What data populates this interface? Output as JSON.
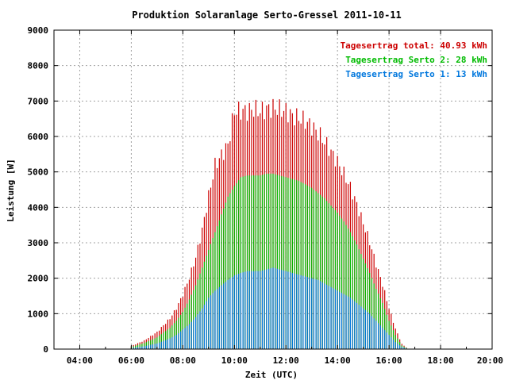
{
  "chart_data": {
    "type": "bar",
    "title": "Produktion Solaranlage Serto-Gressel 2011-10-11",
    "xlabel": "Zeit (UTC)",
    "ylabel": "Leistung [W]",
    "xlim": [
      3.0,
      20.0
    ],
    "ylim": [
      0,
      9000
    ],
    "x_ticks": [
      4,
      6,
      8,
      10,
      12,
      14,
      16,
      18,
      20
    ],
    "x_tick_labels": [
      "04:00",
      "06:00",
      "08:00",
      "10:00",
      "12:00",
      "14:00",
      "16:00",
      "18:00",
      "20:00"
    ],
    "y_ticks": [
      0,
      1000,
      2000,
      3000,
      4000,
      5000,
      6000,
      7000,
      8000,
      9000
    ],
    "y_tick_labels": [
      "0",
      "1000",
      "2000",
      "3000",
      "4000",
      "5000",
      "6000",
      "7000",
      "8000",
      "9000"
    ],
    "grid": true,
    "legend_position": "top-right",
    "legend": [
      {
        "label": "Tagesertrag total: 40.93 kWh",
        "color": "#cc0000"
      },
      {
        "label": "Tagesertrag Serto 2: 28 kWh",
        "color": "#00bb00"
      },
      {
        "label": "Tagesertrag Serto 1: 13 kWh",
        "color": "#0077dd"
      }
    ],
    "series": [
      {
        "name": "Serto 1",
        "color": "#0077dd",
        "x": [
          6.0,
          6.5,
          7.0,
          7.5,
          7.75,
          8.0,
          8.25,
          8.5,
          8.75,
          9.0,
          9.25,
          9.5,
          9.75,
          10.0,
          10.25,
          10.5,
          10.75,
          11.0,
          11.25,
          11.5,
          11.75,
          12.0,
          12.25,
          12.5,
          12.75,
          13.0,
          13.25,
          13.5,
          13.75,
          14.0,
          14.25,
          14.5,
          14.75,
          15.0,
          15.25,
          15.5,
          15.75,
          16.0,
          16.25,
          16.5,
          16.75
        ],
        "values": [
          30,
          80,
          160,
          300,
          400,
          550,
          700,
          900,
          1150,
          1450,
          1650,
          1800,
          1950,
          2080,
          2150,
          2200,
          2200,
          2200,
          2250,
          2300,
          2250,
          2200,
          2150,
          2100,
          2050,
          2000,
          1950,
          1850,
          1750,
          1650,
          1550,
          1450,
          1300,
          1150,
          1000,
          800,
          600,
          400,
          200,
          60,
          0
        ]
      },
      {
        "name": "Serto 2",
        "color": "#00bb00",
        "x": [
          6.0,
          6.5,
          7.0,
          7.5,
          7.75,
          8.0,
          8.25,
          8.5,
          8.75,
          9.0,
          9.25,
          9.5,
          9.75,
          10.0,
          10.25,
          10.5,
          10.75,
          11.0,
          11.25,
          11.5,
          11.75,
          12.0,
          12.25,
          12.5,
          12.75,
          13.0,
          13.25,
          13.5,
          13.75,
          14.0,
          14.25,
          14.5,
          14.75,
          15.0,
          15.25,
          15.5,
          15.75,
          16.0,
          16.25,
          16.5,
          16.75
        ],
        "values": [
          60,
          170,
          330,
          600,
          800,
          1050,
          1400,
          1800,
          2300,
          2800,
          3300,
          3800,
          4300,
          4600,
          4850,
          4900,
          4900,
          4900,
          4950,
          4950,
          4900,
          4850,
          4800,
          4750,
          4650,
          4550,
          4400,
          4250,
          4050,
          3850,
          3600,
          3300,
          2950,
          2550,
          2150,
          1700,
          1300,
          800,
          400,
          100,
          0
        ]
      },
      {
        "name": "Total",
        "color": "#cc0000",
        "x": [
          6.0,
          6.5,
          7.0,
          7.5,
          7.75,
          8.0,
          8.25,
          8.5,
          8.75,
          9.0,
          9.25,
          9.5,
          9.75,
          10.0,
          10.25,
          10.5,
          10.75,
          11.0,
          11.25,
          11.5,
          11.75,
          12.0,
          12.25,
          12.5,
          12.75,
          13.0,
          13.25,
          13.5,
          13.75,
          14.0,
          14.25,
          14.5,
          14.75,
          15.0,
          15.25,
          15.5,
          15.75,
          16.0,
          16.25,
          16.5,
          16.75
        ],
        "values": [
          90,
          250,
          500,
          900,
          1200,
          1600,
          2100,
          2700,
          3500,
          4500,
          5400,
          5700,
          6000,
          7000,
          7000,
          7000,
          7050,
          7000,
          7050,
          7100,
          7050,
          7000,
          6850,
          6800,
          6700,
          6550,
          6350,
          6100,
          5800,
          5500,
          5150,
          4750,
          4250,
          3700,
          3150,
          2500,
          1900,
          1200,
          600,
          150,
          0
        ]
      }
    ]
  }
}
